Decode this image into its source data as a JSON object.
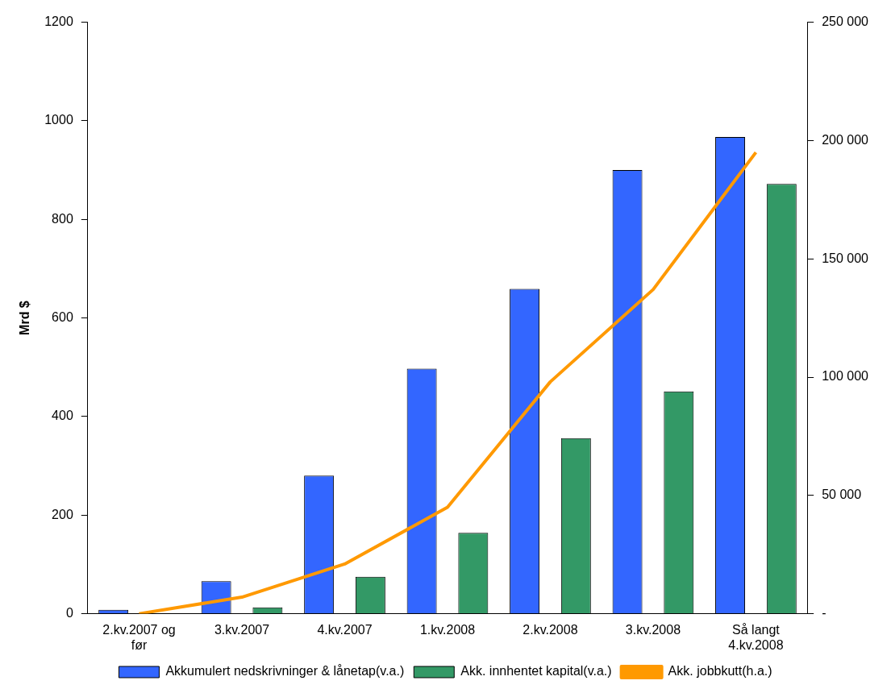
{
  "chart_data": {
    "type": "bar",
    "ylabel": "Mrd $",
    "categories": [
      "2.kv.2007 og før",
      "3.kv.2007",
      "4.kv.2007",
      "1.kv.2008",
      "2.kv.2008",
      "3.kv.2008",
      "Så langt 4.kv.2008"
    ],
    "series": [
      {
        "name": "Akkumulert nedskrivninger & lånetap(v.a.)",
        "color": "#3366ff",
        "values": [
          8,
          66,
          280,
          497,
          659,
          900,
          967
        ]
      },
      {
        "name": "Akk. innhentet kapital(v.a.)",
        "color": "#339966",
        "values": [
          1,
          13,
          75,
          164,
          356,
          451,
          872
        ]
      },
      {
        "name": "Akk. jobbkutt(h.a.)",
        "type": "line",
        "axis": "y2",
        "color": "#ff9900",
        "values": [
          0,
          7000,
          21000,
          45000,
          98000,
          137000,
          195000
        ]
      }
    ],
    "ylim": [
      0,
      1200
    ],
    "yticks": [
      0,
      200,
      400,
      600,
      800,
      1000,
      1200
    ],
    "y2lim": [
      0,
      250000
    ],
    "y2ticks": [
      {
        "value": 0,
        "label": "-"
      },
      {
        "value": 50000,
        "label": "50 000"
      },
      {
        "value": 100000,
        "label": "100 000"
      },
      {
        "value": 150000,
        "label": "150 000"
      },
      {
        "value": 200000,
        "label": "200 000"
      },
      {
        "value": 250000,
        "label": "250 000"
      }
    ],
    "grid": false,
    "legend": "bottom",
    "marker": "none"
  }
}
